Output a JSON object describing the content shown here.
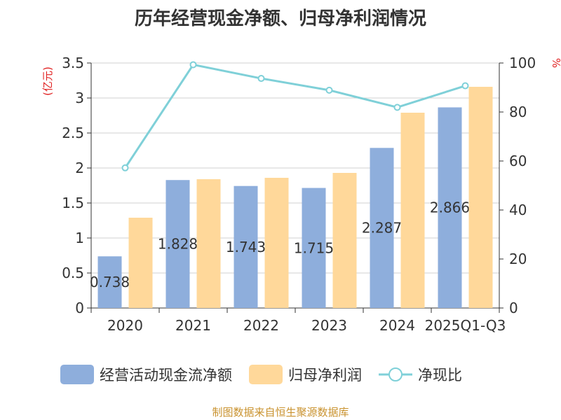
{
  "chart_data": {
    "type": "bar",
    "title": "历年经营现金净额、归母净利润情况",
    "categories": [
      "2020",
      "2021",
      "2022",
      "2023",
      "2024",
      "2025Q1-Q3"
    ],
    "series": [
      {
        "name": "经营活动现金流净额",
        "kind": "bar",
        "axis": "left",
        "color": "#8eaedc",
        "values": [
          0.738,
          1.828,
          1.743,
          1.715,
          2.287,
          2.866
        ],
        "data_labels": [
          "0.738",
          "1.828",
          "1.743",
          "1.715",
          "2.287",
          "2.866"
        ]
      },
      {
        "name": "归母净利润",
        "kind": "bar",
        "axis": "left",
        "color": "#ffd89a",
        "values": [
          1.29,
          1.84,
          1.86,
          1.93,
          2.79,
          3.16
        ]
      },
      {
        "name": "净现比",
        "kind": "line",
        "axis": "right",
        "color": "#7fd0d8",
        "values": [
          57.2,
          99.3,
          93.7,
          88.9,
          81.9,
          90.7
        ]
      }
    ],
    "y_left": {
      "label": "(亿元)",
      "ylim": [
        0,
        3.5
      ],
      "ticks": [
        "0",
        "0.5",
        "1",
        "1.5",
        "2",
        "2.5",
        "3",
        "3.5"
      ]
    },
    "y_right": {
      "label": "%",
      "ylim": [
        0,
        100
      ],
      "ticks": [
        "0",
        "20",
        "40",
        "60",
        "80",
        "100"
      ]
    },
    "grid": true,
    "legend_position": "bottom"
  },
  "source_text": "制图数据来自恒生聚源数据库"
}
